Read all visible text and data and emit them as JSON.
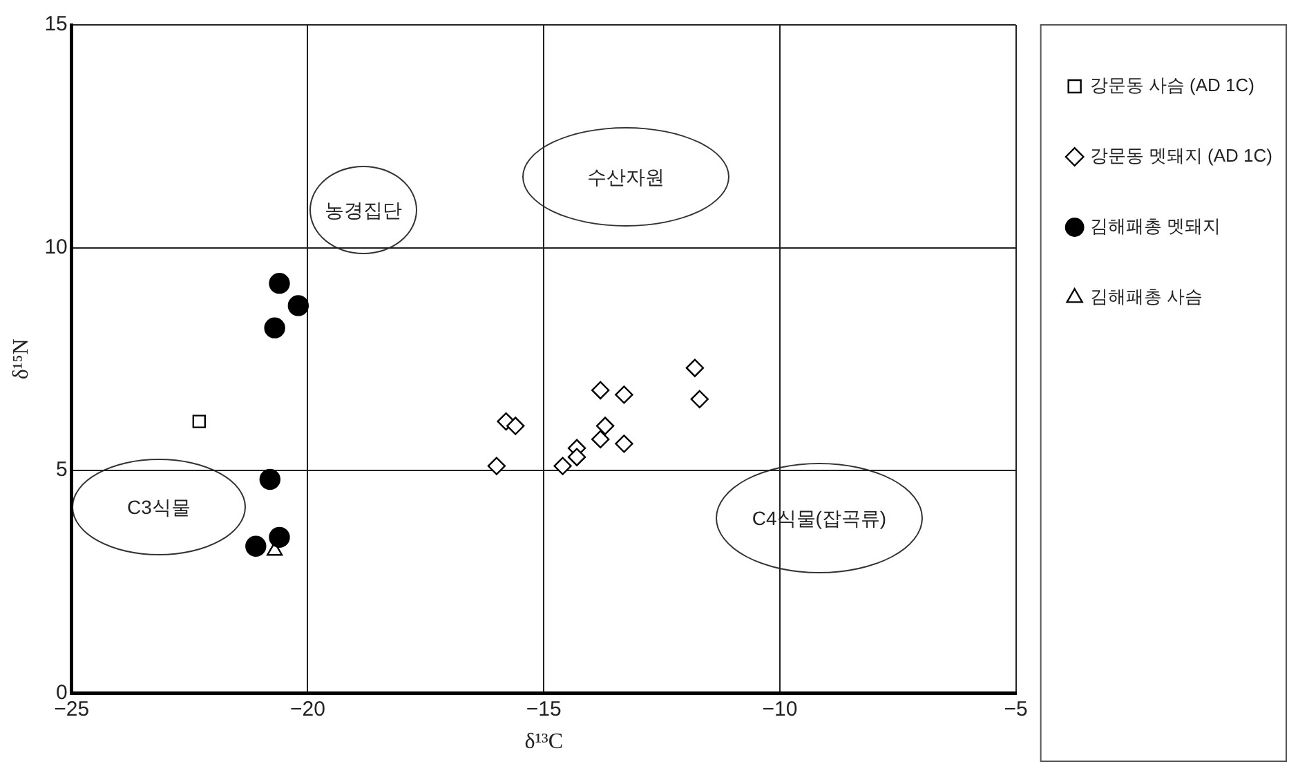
{
  "chart_data": {
    "type": "scatter",
    "xlabel": "δ¹³C",
    "ylabel": "δ¹⁵N",
    "xlim": [
      -25,
      -5
    ],
    "xticks": [
      -25,
      -20,
      -15,
      -10,
      -5
    ],
    "ylim": [
      0,
      15
    ],
    "yticks": [
      0,
      5,
      10,
      15
    ],
    "grid": true,
    "legend": "right",
    "series": [
      {
        "name": "강문동 사슴 (AD 1C)",
        "color": "#000000",
        "marker": "square",
        "x": [
          -22.3
        ],
        "values": [
          6.1
        ]
      },
      {
        "name": "강문동 멧돼지 (AD 1C)",
        "color": "#000000",
        "marker": "diamond",
        "x": [
          -15.8,
          -15.6,
          -16.0,
          -13.8,
          -13.3,
          -13.7,
          -13.8,
          -13.3,
          -14.3,
          -14.3,
          -14.6,
          -11.8,
          -11.7
        ],
        "values": [
          6.1,
          6.0,
          5.1,
          6.8,
          6.7,
          6.0,
          5.7,
          5.6,
          5.5,
          5.3,
          5.1,
          7.3,
          6.6
        ]
      },
      {
        "name": "김해패총 멧돼지",
        "color": "#000000",
        "marker": "circle",
        "x": [
          -20.6,
          -20.2,
          -20.7,
          -20.8,
          -20.6,
          -21.1
        ],
        "values": [
          9.2,
          8.7,
          8.2,
          4.8,
          3.5,
          3.3
        ]
      },
      {
        "name": "김해패총 사슴",
        "color": "#000000",
        "marker": "triangle",
        "x": [
          -20.7
        ],
        "values": [
          3.2
        ]
      }
    ],
    "annotations": [
      "농경집단",
      "수산자원",
      "C3식물",
      "C4식물(잡곡류)"
    ]
  }
}
